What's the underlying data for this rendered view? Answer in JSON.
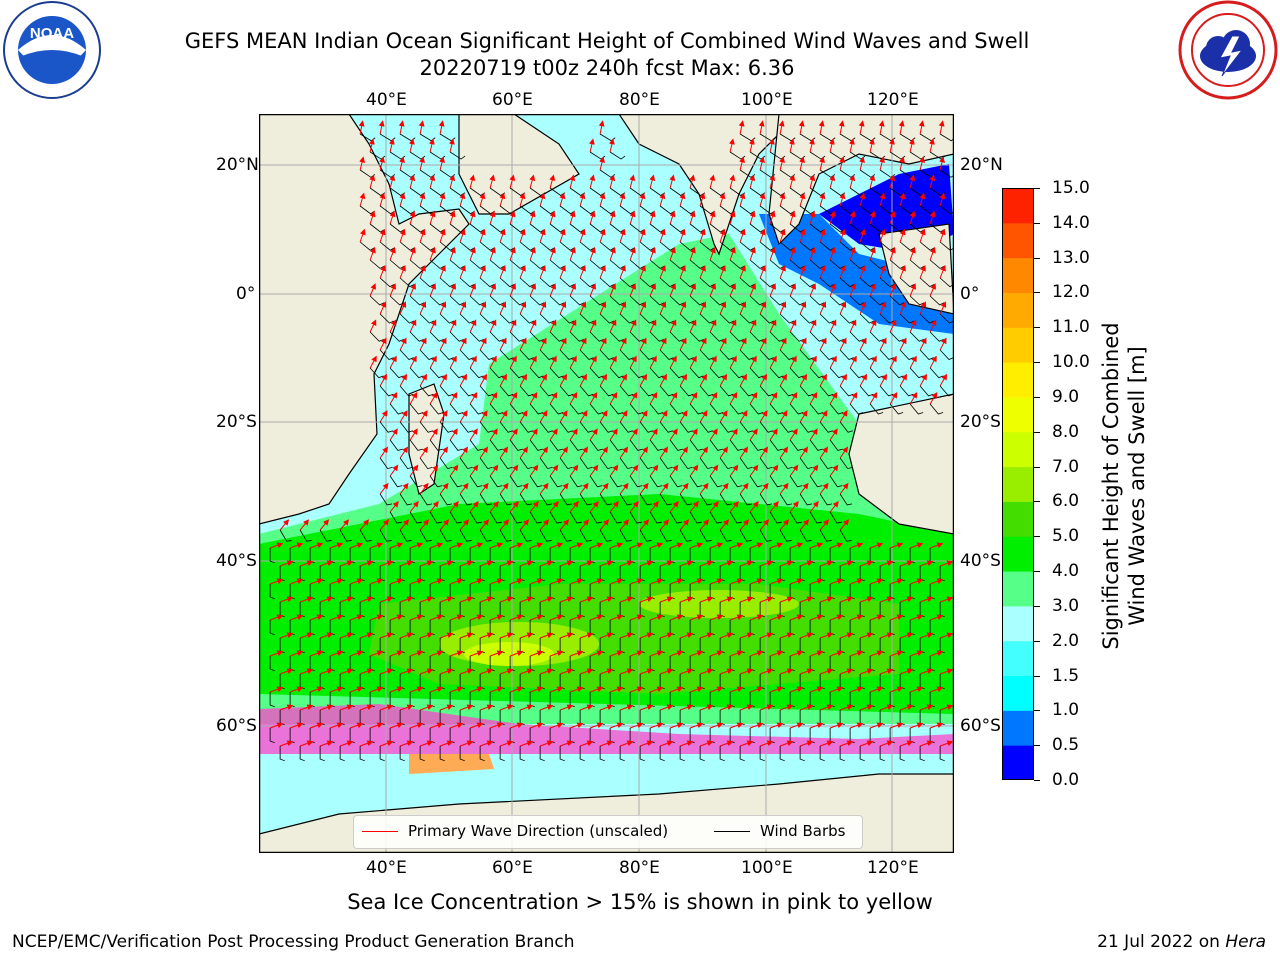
{
  "header": {
    "title_line1": "GEFS MEAN Indian Ocean Significant Height of Combined Wind Waves and Swell",
    "title_line2": "20220719 t00z 240h fcst   Max: 6.36"
  },
  "logos": {
    "left": {
      "name": "noaa-logo",
      "text": "NOAA"
    },
    "right": {
      "name": "nws-logo",
      "text": "NATIONAL WEATHER SERVICE"
    }
  },
  "map": {
    "lon_labels": [
      "40°E",
      "60°E",
      "80°E",
      "100°E",
      "120°E"
    ],
    "lat_labels": [
      "20°N",
      "0°",
      "20°S",
      "40°S",
      "60°S"
    ],
    "lon_range": [
      20,
      130
    ],
    "lat_range": [
      -75,
      27
    ],
    "gridlines": true,
    "land_color": "#efeedd",
    "ice_note_colors": [
      "#ff44cc",
      "#ffaa55",
      "#ffff66"
    ]
  },
  "colorbar": {
    "title": "Significant Height of Combined Wind Waves and Swell [m]",
    "title_line1": "Significant Height of Combined",
    "title_line2": "Wind Waves and Swell [m]",
    "ticks": [
      "0.0",
      "0.5",
      "1.0",
      "1.5",
      "2.0",
      "3.0",
      "4.0",
      "5.0",
      "6.0",
      "7.0",
      "8.0",
      "9.0",
      "10.0",
      "11.0",
      "12.0",
      "13.0",
      "14.0",
      "15.0"
    ],
    "colors": [
      "#0000ff",
      "#0077ff",
      "#00ffff",
      "#44ffff",
      "#aaffff",
      "#55ff88",
      "#00ee00",
      "#44dd00",
      "#99ee00",
      "#ccff00",
      "#eeff00",
      "#ffee00",
      "#ffcc00",
      "#ffaa00",
      "#ff8800",
      "#ff5500",
      "#ff2200"
    ]
  },
  "legend": {
    "wave_label": "Primary Wave Direction (unscaled)",
    "wind_label": "Wind Barbs",
    "wave_color": "#ff0000",
    "wind_color": "#000000"
  },
  "caption": "Sea Ice Concentration > 15% is shown in pink to yellow",
  "footer": {
    "left": "NCEP/EMC/Verification Post Processing Product Generation Branch",
    "right_date": "21 Jul 2022 on ",
    "right_host": "Hera"
  }
}
